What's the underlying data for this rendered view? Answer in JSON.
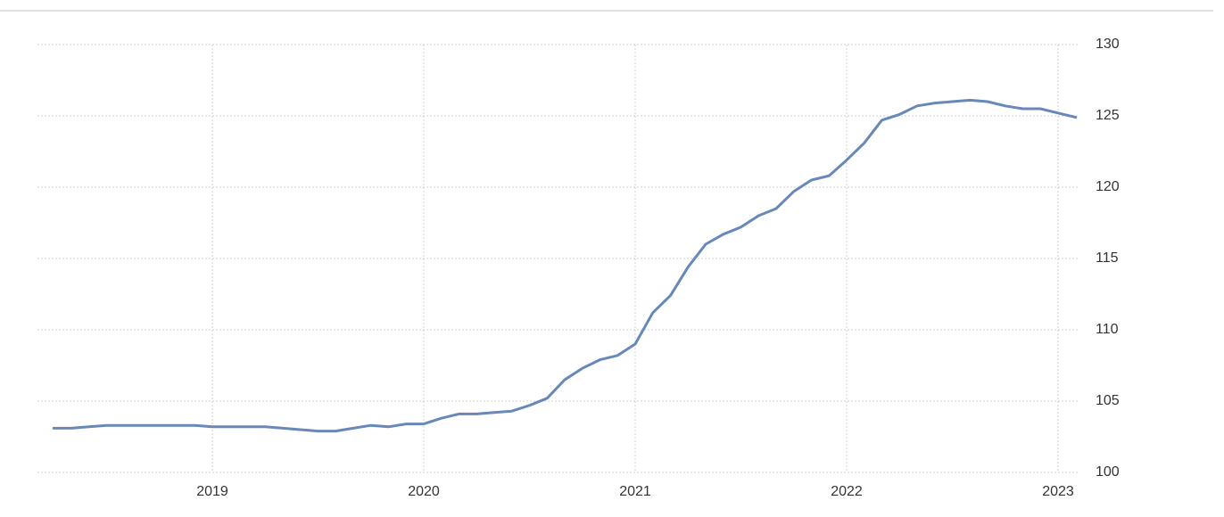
{
  "chart_data": {
    "type": "line",
    "categories": [
      null,
      null,
      null,
      null,
      null,
      null,
      null,
      null,
      null,
      "2019",
      null,
      null,
      null,
      null,
      null,
      null,
      null,
      null,
      null,
      null,
      null,
      "2020",
      null,
      null,
      null,
      null,
      null,
      null,
      null,
      null,
      null,
      null,
      null,
      "2021",
      null,
      null,
      null,
      null,
      null,
      null,
      null,
      null,
      null,
      null,
      null,
      "2022",
      null,
      null,
      null,
      null,
      null,
      null,
      null,
      null,
      null,
      null,
      null,
      "2023",
      null
    ],
    "series": [
      {
        "color": "#6788b9",
        "values": [
          103.1,
          103.1,
          103.2,
          103.3,
          103.3,
          103.3,
          103.3,
          103.3,
          103.3,
          103.2,
          103.2,
          103.2,
          103.2,
          103.1,
          103.0,
          102.9,
          102.9,
          103.1,
          103.3,
          103.2,
          103.4,
          103.4,
          103.8,
          104.1,
          104.1,
          104.2,
          104.3,
          104.7,
          105.2,
          106.5,
          107.3,
          107.9,
          108.2,
          109.0,
          111.2,
          112.4,
          114.4,
          116.0,
          116.7,
          117.2,
          118.0,
          118.5,
          119.7,
          120.5,
          120.8,
          121.9,
          123.1,
          124.7,
          125.1,
          125.7,
          125.9,
          126.0,
          126.1,
          126.0,
          125.7,
          125.5,
          125.5,
          125.2,
          124.9
        ]
      }
    ],
    "ylim": [
      100,
      130
    ],
    "yticks": [
      100,
      105,
      110,
      115,
      120,
      125,
      130
    ],
    "grid": true
  }
}
